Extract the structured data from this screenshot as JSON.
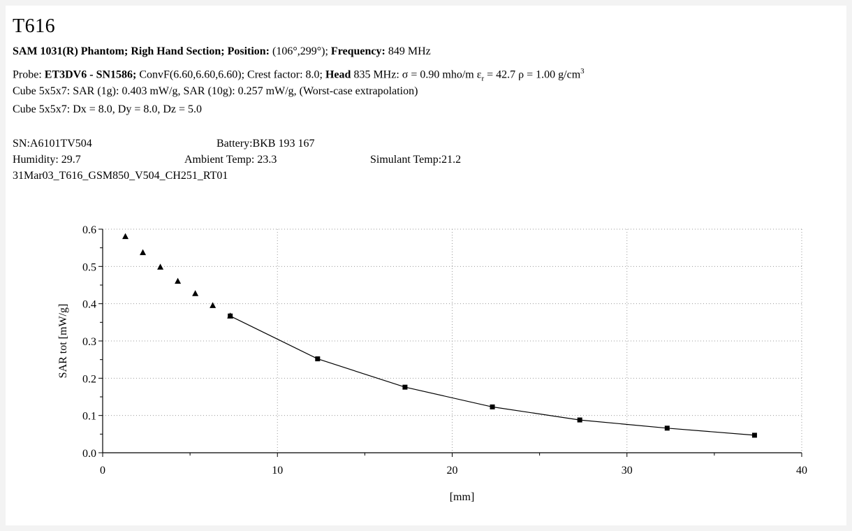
{
  "header": {
    "title": "T616",
    "line1": {
      "phantom_bold": "SAM 1031(R) Phantom; Righ Hand Section; Position:",
      "position": " (106°,299°); ",
      "freq_label": "Frequency:",
      "freq_value": " 849 MHz"
    },
    "line2": {
      "probe_label": "Probe:",
      "probe_bold": " ET3DV6 - SN1586;",
      "conv": " ConvF(6.60,6.60,6.60); Crest factor: 8.0; ",
      "head_bold": "Head",
      "head_rest": " 835 MHz: σ = 0.90 mho/m ε",
      "eps_sub": "r",
      "eps_val": " = 42.7 ρ = 1.00 g/cm",
      "cube_sup": "3"
    },
    "line3": "Cube 5x5x7: SAR (1g): 0.403  mW/g, SAR (10g): 0.257  mW/g, (Worst-case extrapolation)",
    "line4": "Cube 5x5x7: Dx = 8.0, Dy = 8.0, Dz = 5.0"
  },
  "meta": {
    "sn": "SN:A6101TV504",
    "battery": "Battery:BKB 193 167",
    "humidity": "Humidity: 29.7",
    "ambient": "Ambient Temp: 23.3",
    "simulant": "Simulant Temp:21.2",
    "file_id": "31Mar03_T616_GSM850_V504_CH251_RT01"
  },
  "chart_data": {
    "type": "scatter",
    "xlabel": "[mm]",
    "ylabel": "SAR tot [mW/g]",
    "xlim": [
      0,
      40
    ],
    "ylim": [
      0,
      0.6
    ],
    "xticks": [
      "0",
      "10",
      "20",
      "30",
      "40"
    ],
    "yticks": [
      "0.0",
      "0.1",
      "0.2",
      "0.3",
      "0.4",
      "0.5",
      "0.6"
    ],
    "grid": true,
    "series": [
      {
        "marker": "triangle",
        "x": [
          1.3,
          2.3,
          3.3,
          4.3,
          5.3,
          6.3,
          7.3
        ],
        "y": [
          0.58,
          0.537,
          0.498,
          0.46,
          0.427,
          0.395,
          0.367
        ]
      },
      {
        "marker": "square",
        "line": true,
        "x": [
          7.3,
          12.3,
          17.3,
          22.3,
          27.3,
          32.3,
          37.3
        ],
        "y": [
          0.367,
          0.252,
          0.176,
          0.123,
          0.088,
          0.066,
          0.047
        ]
      }
    ]
  }
}
